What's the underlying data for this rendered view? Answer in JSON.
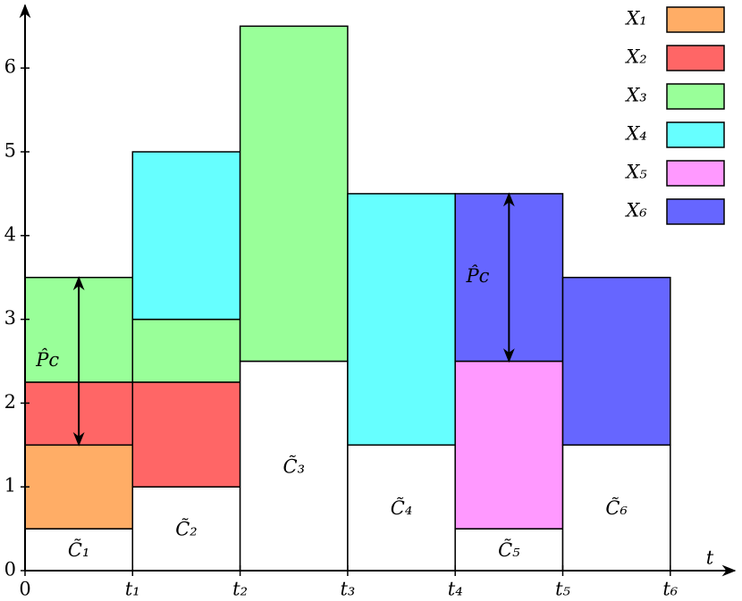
{
  "chart_data": {
    "type": "stacked-interval",
    "x_label": "t",
    "xlim": [
      0,
      6.6
    ],
    "ylim": [
      0,
      6.75
    ],
    "xticks": [
      0,
      {
        "value": 1,
        "label": "t₁"
      },
      {
        "value": 2,
        "label": "t₂"
      },
      {
        "value": 3,
        "label": "t₃"
      },
      {
        "value": 4,
        "label": "t₄"
      },
      {
        "value": 5,
        "label": "t₅"
      },
      {
        "value": 6,
        "label": "t₆"
      }
    ],
    "yticks": [
      0,
      1,
      2,
      3,
      4,
      5,
      6
    ],
    "base": {
      "color": "#ffffff",
      "values": [
        0.5,
        1,
        2.5,
        1.5,
        0.5,
        1.5
      ],
      "labels": [
        "C̃₁",
        "C̃₂",
        "C̃₃",
        "C̃₄",
        "C̃₅",
        "C̃₆"
      ]
    },
    "series": [
      {
        "name": "X₁",
        "color": "#ffad66",
        "values": [
          1,
          null,
          null,
          null,
          null,
          null
        ]
      },
      {
        "name": "X₂",
        "color": "#ff6666",
        "values": [
          0.75,
          1.25,
          null,
          null,
          null,
          null
        ]
      },
      {
        "name": "X₃",
        "color": "#99ff99",
        "values": [
          1.25,
          0.75,
          4,
          null,
          null,
          null
        ]
      },
      {
        "name": "X₄",
        "color": "#66ffff",
        "values": [
          null,
          2,
          null,
          3,
          null,
          null
        ]
      },
      {
        "name": "X₅",
        "color": "#ff99ff",
        "values": [
          null,
          null,
          null,
          null,
          2,
          null
        ]
      },
      {
        "name": "X₆",
        "color": "#6666ff",
        "values": [
          null,
          null,
          null,
          null,
          2,
          2
        ]
      }
    ],
    "annotations": [
      {
        "text": "P̂c",
        "x": 0.5,
        "y_from": 1.5,
        "y_to": 3.5
      },
      {
        "text": "P̂c",
        "x": 4.5,
        "y_from": 2.5,
        "y_to": 4.5
      }
    ]
  }
}
